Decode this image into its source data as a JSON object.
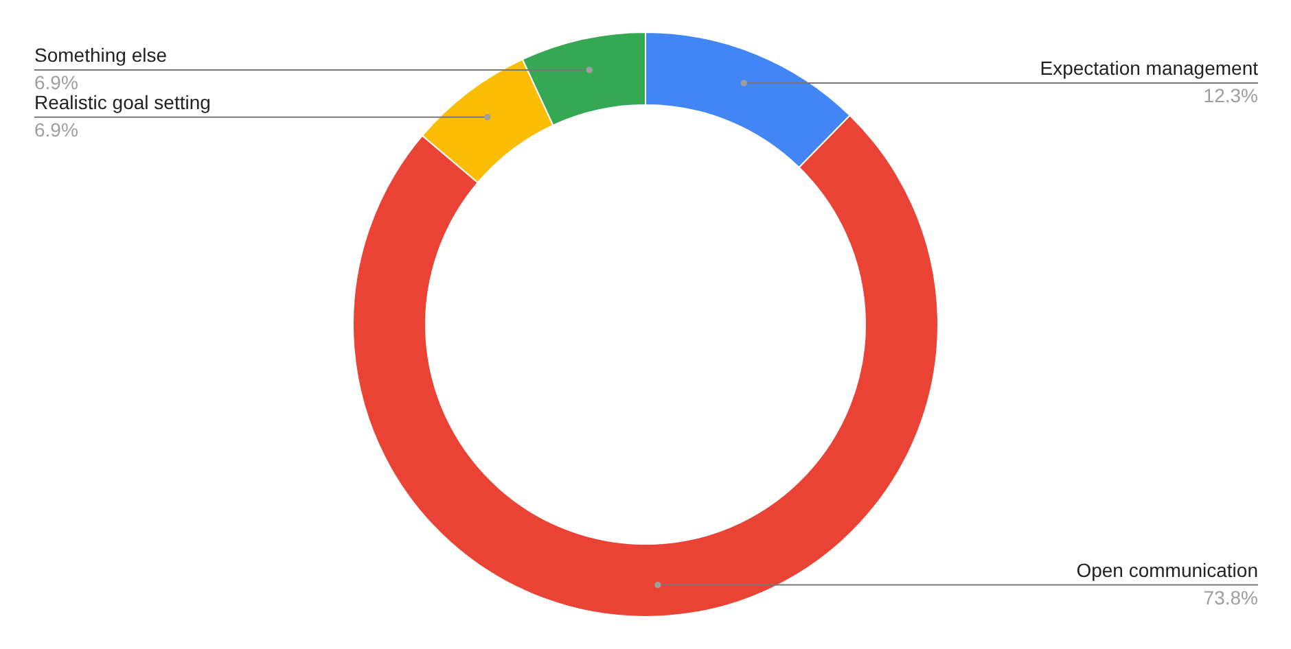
{
  "chart_data": {
    "type": "donut",
    "categories": [
      "Expectation management",
      "Open communication",
      "Realistic goal setting",
      "Something else"
    ],
    "values": [
      12.3,
      73.8,
      6.9,
      6.9
    ],
    "colors": [
      "#4285f4",
      "#ea4335",
      "#fbbc04",
      "#34a853"
    ],
    "value_labels": [
      "12.3%",
      "73.8%",
      "6.9%",
      "6.9%"
    ]
  }
}
